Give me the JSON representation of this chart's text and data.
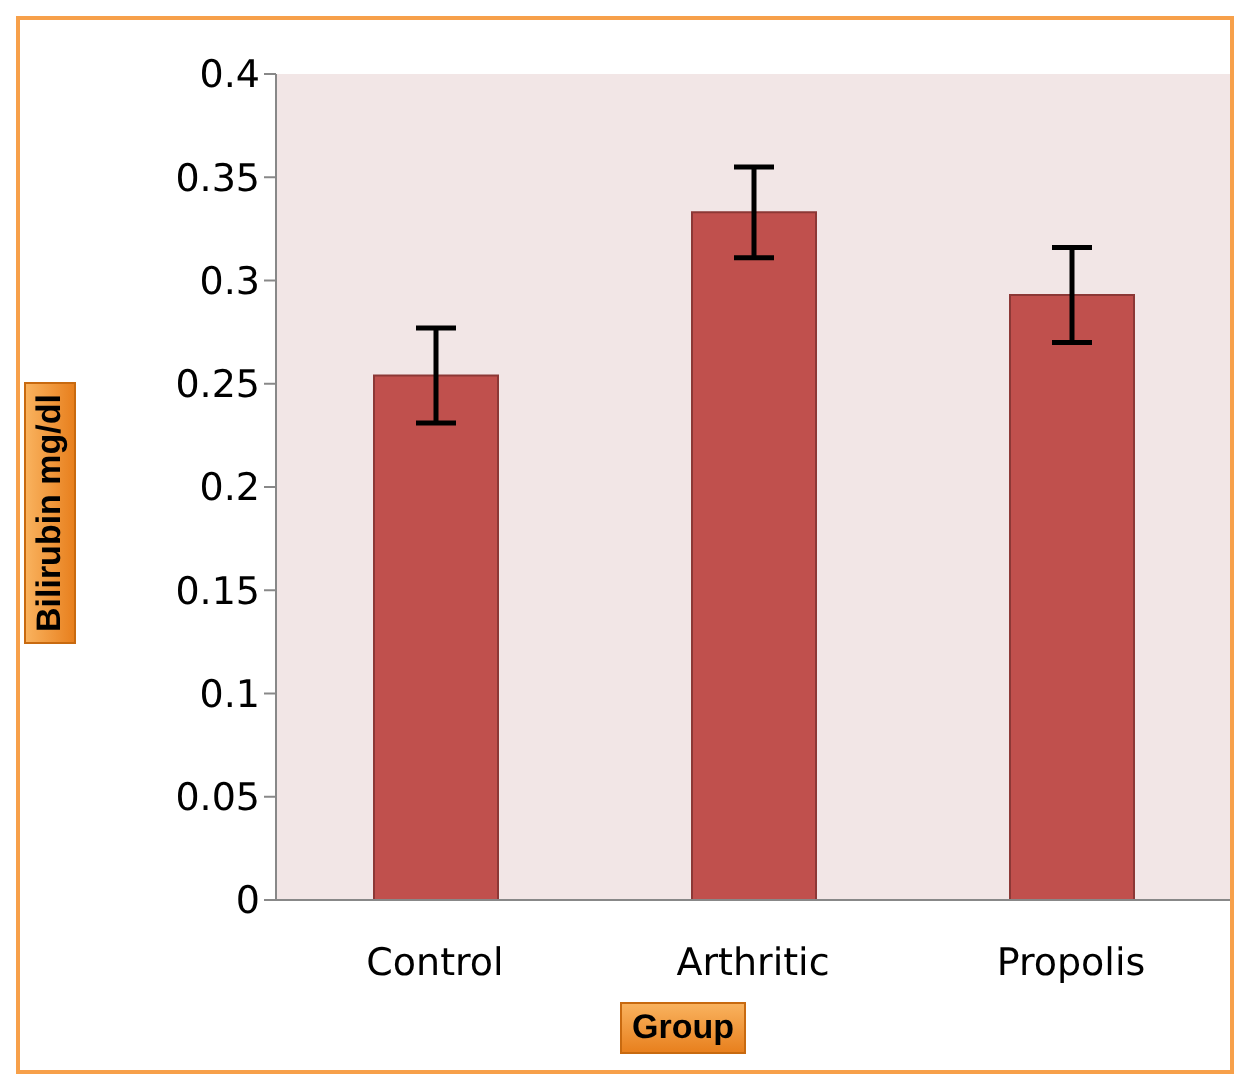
{
  "chart_data": {
    "type": "bar",
    "xlabel": "Group",
    "ylabel": "Bilirubin mg/dl",
    "categories": [
      "Control",
      "Arthritic",
      "Propolis"
    ],
    "series": [
      {
        "color": "#c0504d",
        "values": [
          0.254,
          0.333,
          0.293
        ],
        "errors": [
          0.023,
          0.022,
          0.023
        ]
      }
    ],
    "ylim": [
      0,
      0.4
    ],
    "yticks": [
      0,
      0.05,
      0.1,
      0.15,
      0.2,
      0.25,
      0.3,
      0.35,
      0.4
    ],
    "grid": false,
    "legend": false
  }
}
